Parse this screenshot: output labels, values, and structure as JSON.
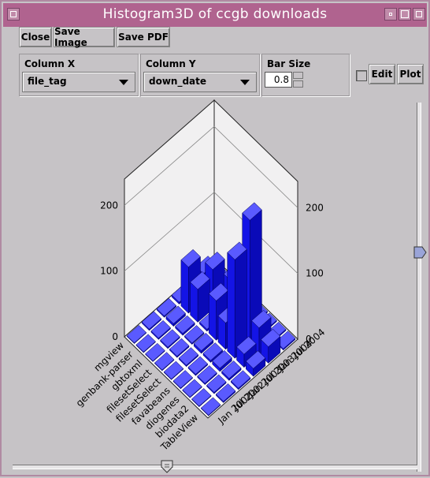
{
  "window": {
    "title": "Histogram3D of ccgb downloads"
  },
  "toolbar": {
    "close_label": "Close",
    "save_image_label": "Save Image",
    "save_pdf_label": "Save PDF"
  },
  "controls": {
    "column_x": {
      "label": "Column X",
      "value": "file_tag"
    },
    "column_y": {
      "label": "Column Y",
      "value": "down_date"
    },
    "bar_size": {
      "label": "Bar Size",
      "value": "0.8"
    },
    "edit_label": "Edit",
    "plot_label": "Plot"
  },
  "colors": {
    "title_bar": "#b0638f",
    "bar": "#1010ee",
    "background": "#c6c3c6"
  },
  "chart_data": {
    "type": "bar",
    "subtype": "3d-histogram",
    "x_categories": [
      "TableView",
      "biodata2",
      "diogenes",
      "favabeans",
      "filesetSelect",
      "filesetSelect",
      "gbtoxml",
      "genbank-parser",
      "mgview"
    ],
    "y_categories": [
      "Jan 2002",
      "Jul 2002",
      "Jan 2003",
      "Jul 2003",
      "Jan 2004",
      "Jul 2004"
    ],
    "z_ticks": [
      0,
      100,
      200
    ],
    "zlim": [
      0,
      240
    ],
    "values": [
      [
        1,
        2,
        2,
        12,
        25,
        2
      ],
      [
        1,
        2,
        3,
        20,
        40,
        2
      ],
      [
        1,
        2,
        5,
        150,
        190,
        2
      ],
      [
        1,
        2,
        3,
        40,
        90,
        2
      ],
      [
        1,
        2,
        4,
        60,
        70,
        2
      ],
      [
        1,
        2,
        2,
        3,
        3,
        2
      ],
      [
        1,
        2,
        3,
        50,
        60,
        2
      ],
      [
        1,
        2,
        4,
        70,
        40,
        2
      ],
      [
        1,
        2,
        2,
        3,
        8,
        2
      ]
    ]
  }
}
